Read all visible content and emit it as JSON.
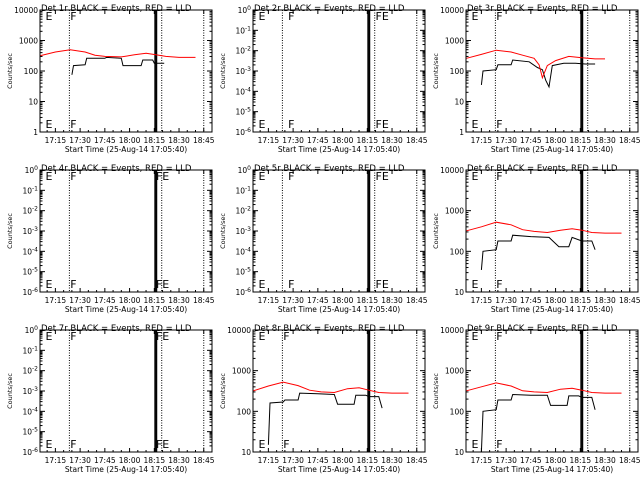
{
  "chart_data": [
    {
      "type": "line",
      "title": "Det 1r BLACK = Events, RED = LLD",
      "xlabel": "Start Time (25-Aug-14 17:05:40)",
      "ylabel": "Counts/sec",
      "x_ticks": [
        "17:15",
        "17:30",
        "17:45",
        "18:00",
        "18:15",
        "18:30",
        "18:45"
      ],
      "y_ticks": [
        "1",
        "10",
        "100",
        "1000",
        "10000"
      ],
      "ylim": [
        1,
        10000
      ],
      "y_scale": "log",
      "markers": [
        {
          "label": "E",
          "t": "17:09"
        },
        {
          "label": "F",
          "t": "17:24"
        }
      ],
      "series": [
        {
          "color": "#000000",
          "points": [
            [
              "17:25",
              75
            ],
            [
              "17:26",
              150
            ],
            [
              "17:33",
              160
            ],
            [
              "17:34",
              260
            ],
            [
              "17:45",
              260
            ],
            [
              "17:46",
              280
            ],
            [
              "17:55",
              260
            ],
            [
              "17:56",
              150
            ],
            [
              "18:07",
              150
            ],
            [
              "18:08",
              230
            ],
            [
              "18:14",
              230
            ],
            [
              "18:15",
              180
            ],
            [
              "18:21",
              180
            ]
          ]
        },
        {
          "color": "#ff0000",
          "points": [
            [
              "17:06",
              320
            ],
            [
              "17:15",
              420
            ],
            [
              "17:24",
              500
            ],
            [
              "17:33",
              420
            ],
            [
              "17:39",
              330
            ],
            [
              "17:45",
              300
            ],
            [
              "17:55",
              290
            ],
            [
              "18:03",
              340
            ],
            [
              "18:10",
              380
            ],
            [
              "18:16",
              340
            ],
            [
              "18:22",
              300
            ],
            [
              "18:30",
              280
            ],
            [
              "18:40",
              280
            ]
          ]
        }
      ]
    },
    {
      "type": "line",
      "title": "Det 2r BLACK = Events, RED = LLD",
      "xlabel": "Start Time (25-Aug-14 17:05:40)",
      "ylabel": "Counts/sec",
      "x_ticks": [
        "17:15",
        "17:30",
        "17:45",
        "18:00",
        "18:15",
        "18:30",
        "18:45"
      ],
      "y_ticks": [
        "10^-6",
        "10^-5",
        "10^-4",
        "10^-3",
        "10^-2",
        "10^-1",
        "10^0"
      ],
      "ylim": [
        1e-06,
        1
      ],
      "y_scale": "log",
      "markers": [
        {
          "label": "E",
          "t": "17:09"
        },
        {
          "label": "F",
          "t": "17:27"
        },
        {
          "label": "FE",
          "t": "18:20"
        }
      ],
      "series": []
    },
    {
      "type": "line",
      "title": "Det 3r BLACK = Events, RED = LLD",
      "xlabel": "Start Time (25-Aug-14 17:05:40)",
      "ylabel": "Counts/sec",
      "x_ticks": [
        "17:15",
        "17:30",
        "17:45",
        "18:00",
        "18:15",
        "18:30",
        "18:45"
      ],
      "y_ticks": [
        "1",
        "10",
        "100",
        "1000",
        "10000"
      ],
      "ylim": [
        1,
        10000
      ],
      "y_scale": "log",
      "markers": [
        {
          "label": "E",
          "t": "17:09"
        },
        {
          "label": "F",
          "t": "17:24"
        }
      ],
      "series": [
        {
          "color": "#000000",
          "points": [
            [
              "17:15",
              35
            ],
            [
              "17:16",
              100
            ],
            [
              "17:24",
              110
            ],
            [
              "17:25",
              160
            ],
            [
              "17:33",
              160
            ],
            [
              "17:34",
              230
            ],
            [
              "17:44",
              200
            ],
            [
              "17:49",
              130
            ],
            [
              "17:52",
              110
            ],
            [
              "17:54",
              50
            ],
            [
              "17:56",
              30
            ],
            [
              "17:58",
              150
            ],
            [
              "18:05",
              180
            ],
            [
              "18:12",
              180
            ],
            [
              "18:18",
              170
            ],
            [
              "18:24",
              170
            ]
          ]
        },
        {
          "color": "#ff0000",
          "points": [
            [
              "17:06",
              260
            ],
            [
              "17:15",
              350
            ],
            [
              "17:24",
              480
            ],
            [
              "17:33",
              420
            ],
            [
              "17:40",
              330
            ],
            [
              "17:47",
              260
            ],
            [
              "17:50",
              160
            ],
            [
              "17:52",
              60
            ],
            [
              "17:55",
              150
            ],
            [
              "18:00",
              220
            ],
            [
              "18:08",
              300
            ],
            [
              "18:16",
              270
            ],
            [
              "18:24",
              250
            ],
            [
              "18:30",
              250
            ]
          ]
        }
      ]
    },
    {
      "type": "line",
      "title": "Det 4r BLACK = Events, RED = LLD",
      "xlabel": "Start Time (25-Aug-14 17:05:40)",
      "ylabel": "Counts/sec",
      "x_ticks": [
        "17:15",
        "17:30",
        "17:45",
        "18:00",
        "18:15",
        "18:30",
        "18:45"
      ],
      "y_ticks": [
        "10^-6",
        "10^-5",
        "10^-4",
        "10^-3",
        "10^-2",
        "10^-1",
        "10^0"
      ],
      "ylim": [
        1e-06,
        1
      ],
      "y_scale": "log",
      "markers": [
        {
          "label": "E",
          "t": "17:09"
        },
        {
          "label": "F",
          "t": "17:24"
        },
        {
          "label": "FE",
          "t": "18:16"
        }
      ],
      "series": []
    },
    {
      "type": "line",
      "title": "Det 5r BLACK = Events, RED = LLD",
      "xlabel": "Start Time (25-Aug-14 17:05:40)",
      "ylabel": "Counts/sec",
      "x_ticks": [
        "17:15",
        "17:30",
        "17:45",
        "18:00",
        "18:15",
        "18:30",
        "18:45"
      ],
      "y_ticks": [
        "10^-6",
        "10^-5",
        "10^-4",
        "10^-3",
        "10^-2",
        "10^-1",
        "10^0"
      ],
      "ylim": [
        1e-06,
        1
      ],
      "y_scale": "log",
      "markers": [
        {
          "label": "E",
          "t": "17:09"
        },
        {
          "label": "F",
          "t": "17:27"
        },
        {
          "label": "FE",
          "t": "18:20"
        }
      ],
      "series": []
    },
    {
      "type": "line",
      "title": "Det 6r BLACK = Events, RED = LLD",
      "xlabel": "Start Time (25-Aug-14 17:05:40)",
      "ylabel": "Counts/sec",
      "x_ticks": [
        "17:15",
        "17:30",
        "17:45",
        "18:00",
        "18:15",
        "18:30",
        "18:45"
      ],
      "y_ticks": [
        "10",
        "100",
        "1000",
        "10000"
      ],
      "ylim": [
        10,
        10000
      ],
      "y_scale": "log",
      "markers": [
        {
          "label": "E",
          "t": "17:09"
        },
        {
          "label": "F",
          "t": "17:24"
        }
      ],
      "series": [
        {
          "color": "#000000",
          "points": [
            [
              "17:15",
              35
            ],
            [
              "17:16",
              100
            ],
            [
              "17:24",
              110
            ],
            [
              "17:25",
              180
            ],
            [
              "17:33",
              180
            ],
            [
              "17:34",
              250
            ],
            [
              "17:45",
              230
            ],
            [
              "17:56",
              220
            ],
            [
              "18:02",
              130
            ],
            [
              "18:08",
              130
            ],
            [
              "18:10",
              220
            ],
            [
              "18:16",
              180
            ],
            [
              "18:22",
              180
            ],
            [
              "18:24",
              110
            ]
          ]
        },
        {
          "color": "#ff0000",
          "points": [
            [
              "17:06",
              320
            ],
            [
              "17:15",
              400
            ],
            [
              "17:24",
              520
            ],
            [
              "17:33",
              450
            ],
            [
              "17:40",
              340
            ],
            [
              "17:47",
              310
            ],
            [
              "17:55",
              290
            ],
            [
              "18:03",
              330
            ],
            [
              "18:10",
              360
            ],
            [
              "18:16",
              330
            ],
            [
              "18:22",
              290
            ],
            [
              "18:30",
              280
            ],
            [
              "18:40",
              280
            ]
          ]
        }
      ]
    },
    {
      "type": "line",
      "title": "Det 7r BLACK = Events, RED = LLD",
      "xlabel": "Start Time (25-Aug-14 17:05:40)",
      "ylabel": "Counts/sec",
      "x_ticks": [
        "17:15",
        "17:30",
        "17:45",
        "18:00",
        "18:15",
        "18:30",
        "18:45"
      ],
      "y_ticks": [
        "10^-6",
        "10^-5",
        "10^-4",
        "10^-3",
        "10^-2",
        "10^-1",
        "10^0"
      ],
      "ylim": [
        1e-06,
        1
      ],
      "y_scale": "log",
      "markers": [
        {
          "label": "E",
          "t": "17:09"
        },
        {
          "label": "F",
          "t": "17:24"
        },
        {
          "label": "FE",
          "t": "18:16"
        }
      ],
      "series": []
    },
    {
      "type": "line",
      "title": "Det 8r BLACK = Events, RED = LLD",
      "xlabel": "Start Time (25-Aug-14 17:05:40)",
      "ylabel": "Counts/sec",
      "x_ticks": [
        "17:15",
        "17:30",
        "17:45",
        "18:00",
        "18:15",
        "18:30",
        "18:45"
      ],
      "y_ticks": [
        "10",
        "100",
        "1000",
        "10000"
      ],
      "ylim": [
        10,
        10000
      ],
      "y_scale": "log",
      "markers": [
        {
          "label": "E",
          "t": "17:09"
        },
        {
          "label": "F",
          "t": "17:24"
        }
      ],
      "series": [
        {
          "color": "#000000",
          "points": [
            [
              "17:15",
              15
            ],
            [
              "17:16",
              160
            ],
            [
              "17:24",
              170
            ],
            [
              "17:25",
              190
            ],
            [
              "17:33",
              190
            ],
            [
              "17:34",
              280
            ],
            [
              "17:45",
              270
            ],
            [
              "17:55",
              260
            ],
            [
              "17:57",
              150
            ],
            [
              "18:07",
              150
            ],
            [
              "18:08",
              250
            ],
            [
              "18:14",
              250
            ],
            [
              "18:16",
              230
            ],
            [
              "18:22",
              230
            ],
            [
              "18:24",
              120
            ]
          ]
        },
        {
          "color": "#ff0000",
          "points": [
            [
              "17:06",
              320
            ],
            [
              "17:15",
              420
            ],
            [
              "17:24",
              520
            ],
            [
              "17:33",
              430
            ],
            [
              "17:40",
              330
            ],
            [
              "17:47",
              300
            ],
            [
              "17:55",
              290
            ],
            [
              "18:03",
              360
            ],
            [
              "18:10",
              380
            ],
            [
              "18:16",
              330
            ],
            [
              "18:22",
              290
            ],
            [
              "18:30",
              280
            ],
            [
              "18:40",
              280
            ]
          ]
        }
      ]
    },
    {
      "type": "line",
      "title": "Det 9r BLACK = Events, RED = LLD",
      "xlabel": "Start Time (25-Aug-14 17:05:40)",
      "ylabel": "Counts/sec",
      "x_ticks": [
        "17:15",
        "17:30",
        "17:45",
        "18:00",
        "18:15",
        "18:30",
        "18:45"
      ],
      "y_ticks": [
        "10",
        "100",
        "1000",
        "10000"
      ],
      "ylim": [
        10,
        10000
      ],
      "y_scale": "log",
      "markers": [
        {
          "label": "E",
          "t": "17:09"
        },
        {
          "label": "F",
          "t": "17:24"
        }
      ],
      "series": [
        {
          "color": "#000000",
          "points": [
            [
              "17:15",
              10
            ],
            [
              "17:16",
              100
            ],
            [
              "17:24",
              110
            ],
            [
              "17:25",
              190
            ],
            [
              "17:33",
              190
            ],
            [
              "17:34",
              260
            ],
            [
              "17:45",
              250
            ],
            [
              "17:55",
              250
            ],
            [
              "17:57",
              140
            ],
            [
              "18:07",
              140
            ],
            [
              "18:08",
              240
            ],
            [
              "18:14",
              240
            ],
            [
              "18:16",
              220
            ],
            [
              "18:22",
              220
            ],
            [
              "18:24",
              110
            ]
          ]
        },
        {
          "color": "#ff0000",
          "points": [
            [
              "17:06",
              320
            ],
            [
              "17:15",
              400
            ],
            [
              "17:24",
              500
            ],
            [
              "17:33",
              420
            ],
            [
              "17:40",
              320
            ],
            [
              "17:47",
              300
            ],
            [
              "17:55",
              290
            ],
            [
              "18:03",
              350
            ],
            [
              "18:10",
              370
            ],
            [
              "18:16",
              330
            ],
            [
              "18:22",
              290
            ],
            [
              "18:30",
              280
            ],
            [
              "18:40",
              280
            ]
          ]
        }
      ]
    }
  ]
}
